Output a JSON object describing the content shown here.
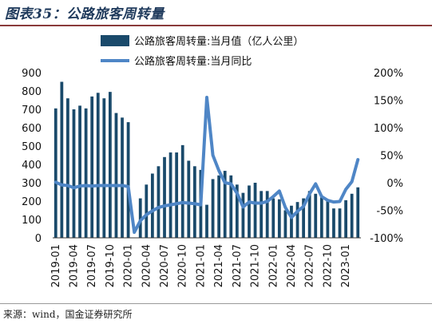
{
  "figure": {
    "title": "图表35：公路旅客周转量",
    "source": "来源：wind，国金证券研究所"
  },
  "colors": {
    "bar": "#1a4a6b",
    "line": "#4f86c6",
    "title_rule": "#8a3a3a"
  },
  "chart_data": {
    "type": "bar",
    "title": "",
    "xlabel": "",
    "ylabel": "",
    "ylim": [
      0,
      900
    ],
    "y2lim": [
      -100,
      200
    ],
    "legend_position": "top-right",
    "grid": false,
    "yticks": [
      "0",
      "100",
      "200",
      "300",
      "400",
      "500",
      "600",
      "700",
      "800",
      "900"
    ],
    "y2ticks": [
      "-100%",
      "-50%",
      "0%",
      "50%",
      "100%",
      "150%",
      "200%"
    ],
    "xticks": [
      "2019-01",
      "2019-04",
      "2019-07",
      "2019-10",
      "2020-01",
      "2020-04",
      "2020-07",
      "2020-10",
      "2021-01",
      "2021-04",
      "2021-07",
      "2021-10",
      "2022-01",
      "2022-04",
      "2022-07",
      "2022-10",
      "2023-01"
    ],
    "xtick_indices": [
      0,
      3,
      6,
      9,
      12,
      15,
      18,
      21,
      24,
      27,
      30,
      33,
      36,
      39,
      42,
      45,
      48
    ],
    "categories": [
      "2019-01",
      "2019-02",
      "2019-03",
      "2019-04",
      "2019-05",
      "2019-06",
      "2019-07",
      "2019-08",
      "2019-09",
      "2019-10",
      "2019-11",
      "2019-12",
      "2020-01",
      "2020-02",
      "2020-03",
      "2020-04",
      "2020-05",
      "2020-06",
      "2020-07",
      "2020-08",
      "2020-09",
      "2020-10",
      "2020-11",
      "2020-12",
      "2021-01",
      "2021-02",
      "2021-03",
      "2021-04",
      "2021-05",
      "2021-06",
      "2021-07",
      "2021-08",
      "2021-09",
      "2021-10",
      "2021-11",
      "2021-12",
      "2022-01",
      "2022-02",
      "2022-03",
      "2022-04",
      "2022-05",
      "2022-06",
      "2022-07",
      "2022-08",
      "2022-09",
      "2022-10",
      "2022-11",
      "2022-12",
      "2023-01",
      "2023-02",
      "2023-03"
    ],
    "series": [
      {
        "name": "公路旅客周转量:当月值（亿人公里）",
        "type": "bar",
        "axis": "left",
        "values": [
          705,
          850,
          760,
          700,
          720,
          705,
          770,
          790,
          760,
          795,
          680,
          655,
          630,
          0,
          215,
          290,
          350,
          390,
          440,
          465,
          465,
          505,
          420,
          390,
          370,
          180,
          320,
          340,
          365,
          340,
          290,
          245,
          285,
          300,
          255,
          255,
          215,
          210,
          150,
          175,
          195,
          215,
          255,
          240,
          220,
          200,
          160,
          160,
          205,
          240,
          275
        ]
      },
      {
        "name": "公路旅客周转量:当月同比",
        "type": "line",
        "axis": "right",
        "values": [
          1,
          -4,
          -5,
          -9,
          -6,
          -5,
          -6,
          -5,
          -5,
          -5,
          -5,
          -5,
          -7,
          -90,
          -69,
          -58,
          -51,
          -45,
          -42,
          -40,
          -38,
          -36,
          -37,
          -38,
          -40,
          155,
          50,
          22,
          0,
          -2,
          -19,
          -44,
          -35,
          -37,
          -37,
          -34,
          -25,
          -15,
          -45,
          -63,
          -52,
          -43,
          -20,
          -2,
          -25,
          -32,
          -35,
          -34,
          -12,
          2,
          42
        ]
      }
    ]
  }
}
